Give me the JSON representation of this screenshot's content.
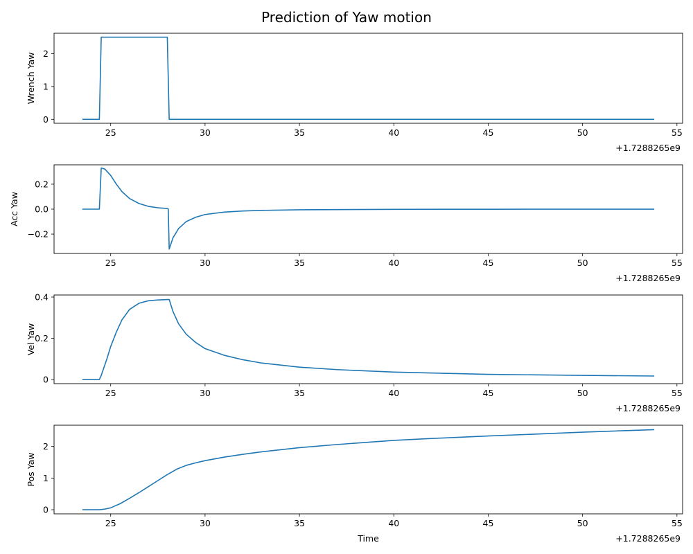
{
  "title": "Prediction of Yaw motion",
  "x_offset_label": "+1.7288265e9",
  "xlabel": "Time",
  "line_color": "#1f77b4",
  "chart_data": [
    {
      "type": "line",
      "ylabel": "Wrench Yaw",
      "xlim": [
        22.0,
        55.3
      ],
      "ylim": [
        -0.12,
        2.62
      ],
      "xticks": [
        25,
        30,
        35,
        40,
        45,
        50,
        55
      ],
      "yticks": [
        0,
        1,
        2
      ],
      "xlabel": "",
      "x_offset_label": "+1.7288265e9",
      "grid": false,
      "series": [
        {
          "x": [
            23.5,
            24.4,
            24.5,
            28.0,
            28.1,
            53.8
          ],
          "y": [
            0,
            0,
            2.5,
            2.5,
            0,
            0
          ]
        }
      ]
    },
    {
      "type": "line",
      "ylabel": "Acc Yaw",
      "xlim": [
        22.0,
        55.3
      ],
      "ylim": [
        -0.355,
        0.355
      ],
      "xticks": [
        25,
        30,
        35,
        40,
        45,
        50,
        55
      ],
      "yticks": [
        -0.2,
        0.0,
        0.2
      ],
      "ytick_labels": [
        "−0.2",
        "0.0",
        "0.2"
      ],
      "xlabel": "",
      "x_offset_label": "+1.7288265e9",
      "grid": false,
      "series": [
        {
          "x": [
            23.5,
            24.4,
            24.5,
            24.7,
            25.0,
            25.3,
            25.6,
            26.0,
            26.5,
            27.0,
            27.5,
            28.0,
            28.05,
            28.1,
            28.3,
            28.6,
            29.0,
            29.5,
            30.0,
            31.0,
            32.0,
            33.0,
            35.0,
            40.0,
            45.0,
            50.0,
            53.8
          ],
          "y": [
            0,
            0,
            0.33,
            0.32,
            0.27,
            0.2,
            0.14,
            0.085,
            0.045,
            0.022,
            0.011,
            0.005,
            0.002,
            -0.32,
            -0.23,
            -0.155,
            -0.1,
            -0.065,
            -0.043,
            -0.024,
            -0.015,
            -0.01,
            -0.005,
            -0.0015,
            -0.0008,
            -0.0004,
            -0.0003
          ]
        }
      ]
    },
    {
      "type": "line",
      "ylabel": "Vel Yaw",
      "xlim": [
        22.0,
        55.3
      ],
      "ylim": [
        -0.02,
        0.41
      ],
      "xticks": [
        25,
        30,
        35,
        40,
        45,
        50,
        55
      ],
      "yticks": [
        0.0,
        0.2,
        0.4
      ],
      "xlabel": "",
      "x_offset_label": "+1.7288265e9",
      "grid": false,
      "series": [
        {
          "x": [
            23.5,
            24.4,
            24.5,
            24.8,
            25.0,
            25.3,
            25.6,
            26.0,
            26.5,
            27.0,
            27.5,
            28.0,
            28.1,
            28.3,
            28.6,
            29.0,
            29.5,
            30.0,
            31.0,
            32.0,
            33.0,
            35.0,
            37.0,
            40.0,
            45.0,
            50.0,
            53.8
          ],
          "y": [
            0,
            0,
            0.02,
            0.1,
            0.16,
            0.23,
            0.29,
            0.34,
            0.37,
            0.382,
            0.386,
            0.388,
            0.388,
            0.33,
            0.27,
            0.22,
            0.18,
            0.15,
            0.118,
            0.096,
            0.08,
            0.06,
            0.048,
            0.036,
            0.025,
            0.02,
            0.017
          ]
        }
      ]
    },
    {
      "type": "line",
      "ylabel": "Pos Yaw",
      "xlim": [
        22.0,
        55.3
      ],
      "ylim": [
        -0.13,
        2.67
      ],
      "xticks": [
        25,
        30,
        35,
        40,
        45,
        50,
        55
      ],
      "yticks": [
        0,
        1,
        2
      ],
      "xlabel": "Time",
      "x_offset_label": "+1.7288265e9",
      "grid": false,
      "series": [
        {
          "x": [
            23.5,
            24.4,
            24.7,
            25.0,
            25.5,
            26.0,
            26.5,
            27.0,
            27.5,
            28.0,
            28.5,
            29.0,
            29.5,
            30.0,
            31.0,
            32.0,
            33.0,
            35.0,
            37.0,
            40.0,
            42.0,
            45.0,
            48.0,
            50.0,
            53.8
          ],
          "y": [
            0,
            0,
            0.02,
            0.06,
            0.19,
            0.36,
            0.54,
            0.73,
            0.92,
            1.11,
            1.28,
            1.4,
            1.48,
            1.55,
            1.66,
            1.75,
            1.83,
            1.96,
            2.06,
            2.19,
            2.25,
            2.33,
            2.4,
            2.45,
            2.53
          ]
        }
      ]
    }
  ]
}
